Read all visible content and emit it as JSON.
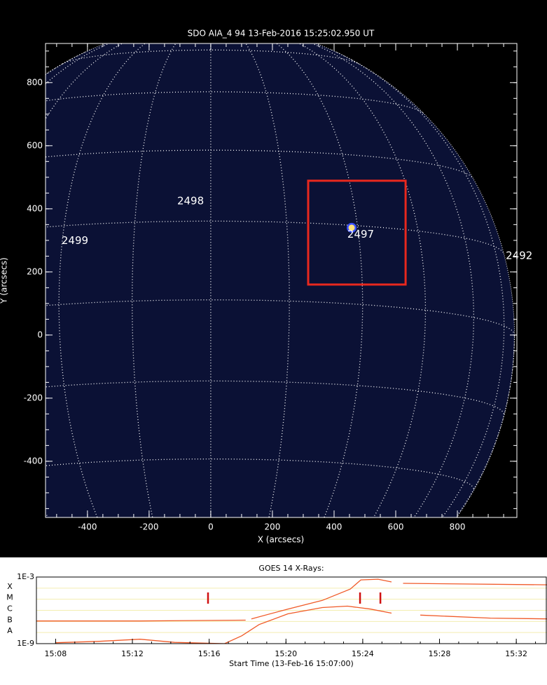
{
  "chart_data": [
    {
      "type": "image",
      "title": "SDO AIA_4 94 13-Feb-2016 15:25:02.950 UT",
      "xlabel": "X (arcsecs)",
      "ylabel": "Y (arcsecs)",
      "xlim": [
        -536,
        993
      ],
      "ylim": [
        -578,
        924
      ],
      "xticks": [
        -400,
        -200,
        0,
        200,
        400,
        600,
        800
      ],
      "yticks": [
        -400,
        -200,
        0,
        200,
        400,
        600,
        800
      ],
      "regions": [
        {
          "label": "2499",
          "x": -484,
          "y": 298
        },
        {
          "label": "2498",
          "x": -109,
          "y": 424
        },
        {
          "label": "2497",
          "x": 443,
          "y": 318
        },
        {
          "label": "2492",
          "x": 957,
          "y": 251
        }
      ],
      "box": {
        "x": [
          316,
          632
        ],
        "y": [
          160,
          489
        ],
        "color": "#e8281e"
      },
      "flare": {
        "x": 457,
        "y": 340
      }
    },
    {
      "type": "line",
      "title": "GOES 14 X-Rays:",
      "xlabel": "Start Time (13-Feb-16 15:07:00)",
      "log_scale": true,
      "xlim": [
        7,
        33.6
      ],
      "ylim": [
        1e-09,
        0.001
      ],
      "xticks": [
        {
          "value": 8,
          "label": "15:08"
        },
        {
          "value": 12,
          "label": "15:12"
        },
        {
          "value": 16,
          "label": "15:16"
        },
        {
          "value": 20,
          "label": "15:20"
        },
        {
          "value": 24,
          "label": "15:24"
        },
        {
          "value": 28,
          "label": "15:28"
        },
        {
          "value": 32,
          "label": "15:32"
        }
      ],
      "yticks": [
        {
          "value": 0.001,
          "label": "1E-3"
        },
        {
          "value": 1e-09,
          "label": "1E-9"
        }
      ],
      "flare_classes": [
        {
          "value": 0.0001,
          "label": "X"
        },
        {
          "value": 1e-05,
          "label": "M"
        },
        {
          "value": 1e-06,
          "label": "C"
        },
        {
          "value": 1e-07,
          "label": "B"
        },
        {
          "value": 1e-08,
          "label": "A"
        }
      ],
      "series": [
        {
          "color": "#f05a28",
          "x": [
            7,
            12.4,
            17.9,
            null,
            18.2,
            20.1,
            21.9,
            23.35,
            23.9,
            24.8,
            25.5,
            null,
            26.1,
            33.6
          ],
          "values": [
            1.1e-07,
            1.1e-07,
            1.3e-07,
            null,
            1.7e-07,
            1.3e-06,
            7.9e-06,
            8.2e-05,
            0.00055,
            0.00064,
            0.00036,
            null,
            0.00027,
            0.0002
          ]
        },
        {
          "color": "#f05a28",
          "x": [
            8.0,
            10.2,
            12.4,
            14.2,
            16.8,
            17.7,
            18.6,
            20.1,
            21.9,
            23.2,
            24.4,
            25.5,
            null,
            27.0,
            30.65,
            33.6
          ],
          "values": [
            1.2e-09,
            1.6e-09,
            2.5e-09,
            1.3e-09,
            1e-09,
            5.1e-09,
            5.2e-08,
            4.8e-07,
            1.8e-06,
            2.4e-06,
            1.3e-06,
            5.6e-07,
            null,
            3.7e-07,
            2e-07,
            1.7e-07
          ]
        }
      ],
      "markers": {
        "x": [
          15.94,
          23.86,
          24.92
        ],
        "color": "#d01010"
      }
    }
  ]
}
